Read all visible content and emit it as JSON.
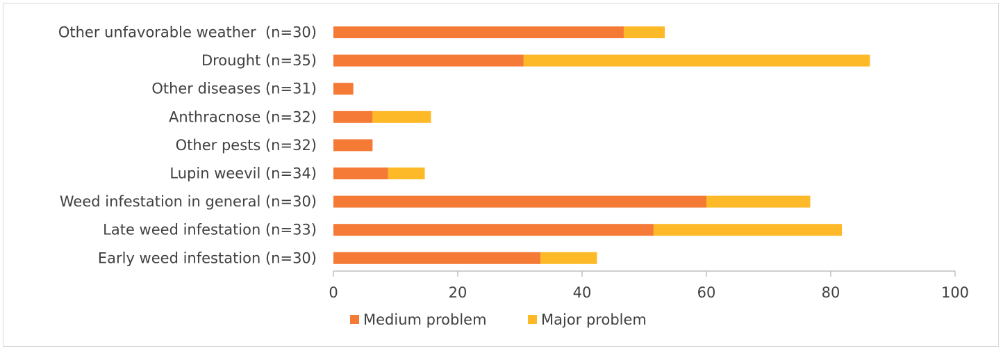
{
  "chart_data": {
    "type": "bar",
    "orientation": "horizontal",
    "stacked": true,
    "categories": [
      "Other unfavorable weather  (n=30)",
      "Drought (n=35)",
      "Other diseases (n=31)",
      "Anthracnose (n=32)",
      "Other pests (n=32)",
      "Lupin weevil (n=34)",
      "Weed infestation in general (n=30)",
      "Late weed infestation (n=33)",
      "Early weed infestation (n=30)"
    ],
    "series": [
      {
        "name": "Medium problem",
        "color": "#f47a36",
        "values": [
          46.7,
          30.6,
          3.2,
          6.3,
          6.3,
          8.8,
          60.0,
          51.5,
          33.3
        ]
      },
      {
        "name": "Major problem",
        "color": "#fdb927",
        "values": [
          6.6,
          55.7,
          0,
          9.4,
          0,
          5.9,
          16.7,
          30.3,
          9.1
        ]
      }
    ],
    "xlim": [
      0,
      100
    ],
    "xticks": [
      "0",
      "20",
      "40",
      "60",
      "80",
      "100"
    ],
    "xtick_values": [
      0,
      20,
      40,
      60,
      80,
      100
    ],
    "grid": false,
    "legend_position": "bottom"
  }
}
